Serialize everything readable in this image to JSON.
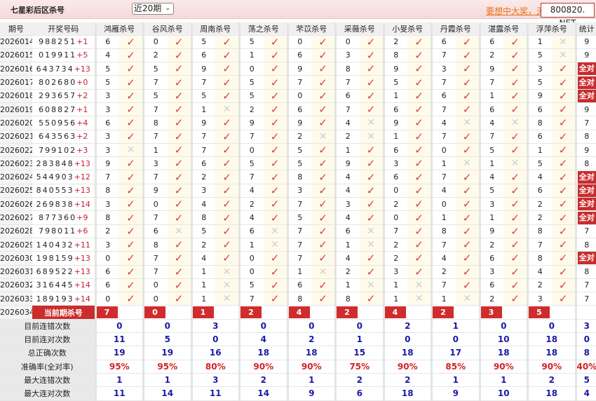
{
  "header": {
    "title": "七星彩后区杀号",
    "period_select": "近20期",
    "promo_link": "要想中大奖，天",
    "brand": "800820. NET"
  },
  "columns": {
    "period": "期号",
    "numbers": "开奖号码",
    "kills": [
      "鸿雁杀号",
      "谷风杀号",
      "周南杀号",
      "荡之杀号",
      "芣苡杀号",
      "采薇杀号",
      "小旻杀号",
      "丹霞杀号",
      "湛露杀号",
      "浮萍杀号"
    ],
    "stat": "统计"
  },
  "rows": [
    {
      "period": "2026014",
      "nums": "988251",
      "plus": "+1",
      "kills": [
        [
          6,
          1
        ],
        [
          0,
          1
        ],
        [
          5,
          1
        ],
        [
          5,
          1
        ],
        [
          0,
          1
        ],
        [
          0,
          1
        ],
        [
          2,
          1
        ],
        [
          6,
          1
        ],
        [
          6,
          1
        ],
        [
          1,
          0
        ]
      ],
      "stat": "9"
    },
    {
      "period": "2026015",
      "nums": "019911",
      "plus": "+5",
      "kills": [
        [
          4,
          1
        ],
        [
          2,
          1
        ],
        [
          6,
          1
        ],
        [
          1,
          1
        ],
        [
          6,
          1
        ],
        [
          3,
          1
        ],
        [
          8,
          1
        ],
        [
          7,
          1
        ],
        [
          2,
          1
        ],
        [
          5,
          0
        ]
      ],
      "stat": "9"
    },
    {
      "period": "2026016",
      "nums": "643734",
      "plus": "+13",
      "kills": [
        [
          5,
          1
        ],
        [
          5,
          1
        ],
        [
          9,
          1
        ],
        [
          0,
          1
        ],
        [
          9,
          1
        ],
        [
          8,
          1
        ],
        [
          9,
          1
        ],
        [
          3,
          1
        ],
        [
          9,
          1
        ],
        [
          3,
          1
        ]
      ],
      "stat": "全对"
    },
    {
      "period": "2026017",
      "nums": "802680",
      "plus": "+0",
      "kills": [
        [
          5,
          1
        ],
        [
          7,
          1
        ],
        [
          7,
          1
        ],
        [
          5,
          1
        ],
        [
          7,
          1
        ],
        [
          7,
          1
        ],
        [
          5,
          1
        ],
        [
          7,
          1
        ],
        [
          7,
          1
        ],
        [
          5,
          1
        ]
      ],
      "stat": "全对"
    },
    {
      "period": "2026018",
      "nums": "293657",
      "plus": "+2",
      "kills": [
        [
          3,
          1
        ],
        [
          5,
          1
        ],
        [
          5,
          1
        ],
        [
          5,
          1
        ],
        [
          0,
          1
        ],
        [
          6,
          1
        ],
        [
          1,
          1
        ],
        [
          6,
          1
        ],
        [
          1,
          1
        ],
        [
          9,
          1
        ]
      ],
      "stat": "全对"
    },
    {
      "period": "2026019",
      "nums": "608827",
      "plus": "+1",
      "kills": [
        [
          3,
          1
        ],
        [
          7,
          1
        ],
        [
          1,
          0
        ],
        [
          2,
          1
        ],
        [
          6,
          1
        ],
        [
          7,
          1
        ],
        [
          6,
          1
        ],
        [
          7,
          1
        ],
        [
          6,
          1
        ],
        [
          6,
          1
        ]
      ],
      "stat": "9"
    },
    {
      "period": "2026020",
      "nums": "550956",
      "plus": "+4",
      "kills": [
        [
          6,
          1
        ],
        [
          8,
          1
        ],
        [
          9,
          1
        ],
        [
          9,
          1
        ],
        [
          9,
          1
        ],
        [
          4,
          0
        ],
        [
          9,
          1
        ],
        [
          4,
          0
        ],
        [
          4,
          0
        ],
        [
          8,
          1
        ]
      ],
      "stat": "7"
    },
    {
      "period": "2026021",
      "nums": "643563",
      "plus": "+2",
      "kills": [
        [
          3,
          1
        ],
        [
          7,
          1
        ],
        [
          7,
          1
        ],
        [
          7,
          1
        ],
        [
          2,
          0
        ],
        [
          2,
          0
        ],
        [
          1,
          1
        ],
        [
          7,
          1
        ],
        [
          7,
          1
        ],
        [
          6,
          1
        ]
      ],
      "stat": "8"
    },
    {
      "period": "2026022",
      "nums": "799102",
      "plus": "+3",
      "kills": [
        [
          3,
          0
        ],
        [
          1,
          1
        ],
        [
          7,
          1
        ],
        [
          0,
          1
        ],
        [
          5,
          1
        ],
        [
          1,
          1
        ],
        [
          6,
          1
        ],
        [
          0,
          1
        ],
        [
          5,
          1
        ],
        [
          1,
          1
        ]
      ],
      "stat": "9"
    },
    {
      "period": "2026023",
      "nums": "283848",
      "plus": "+13",
      "kills": [
        [
          9,
          1
        ],
        [
          3,
          1
        ],
        [
          6,
          1
        ],
        [
          5,
          1
        ],
        [
          5,
          1
        ],
        [
          9,
          1
        ],
        [
          3,
          1
        ],
        [
          1,
          0
        ],
        [
          1,
          0
        ],
        [
          5,
          1
        ]
      ],
      "stat": "8"
    },
    {
      "period": "2026024",
      "nums": "544903",
      "plus": "+12",
      "kills": [
        [
          7,
          1
        ],
        [
          7,
          1
        ],
        [
          2,
          1
        ],
        [
          7,
          1
        ],
        [
          8,
          1
        ],
        [
          4,
          1
        ],
        [
          6,
          1
        ],
        [
          7,
          1
        ],
        [
          4,
          1
        ],
        [
          4,
          1
        ]
      ],
      "stat": "全对"
    },
    {
      "period": "2026025",
      "nums": "840553",
      "plus": "+13",
      "kills": [
        [
          8,
          1
        ],
        [
          9,
          1
        ],
        [
          3,
          1
        ],
        [
          4,
          1
        ],
        [
          3,
          1
        ],
        [
          4,
          1
        ],
        [
          0,
          1
        ],
        [
          4,
          1
        ],
        [
          5,
          1
        ],
        [
          6,
          1
        ]
      ],
      "stat": "全对"
    },
    {
      "period": "2026026",
      "nums": "269838",
      "plus": "+14",
      "kills": [
        [
          3,
          1
        ],
        [
          0,
          1
        ],
        [
          4,
          1
        ],
        [
          2,
          1
        ],
        [
          7,
          1
        ],
        [
          3,
          1
        ],
        [
          2,
          1
        ],
        [
          0,
          1
        ],
        [
          3,
          1
        ],
        [
          2,
          1
        ]
      ],
      "stat": "全对"
    },
    {
      "period": "2026027",
      "nums": "877360",
      "plus": "+9",
      "kills": [
        [
          8,
          1
        ],
        [
          7,
          1
        ],
        [
          8,
          1
        ],
        [
          4,
          1
        ],
        [
          5,
          1
        ],
        [
          4,
          1
        ],
        [
          0,
          1
        ],
        [
          1,
          1
        ],
        [
          1,
          1
        ],
        [
          2,
          1
        ]
      ],
      "stat": "全对"
    },
    {
      "period": "2026028",
      "nums": "798011",
      "plus": "+6",
      "kills": [
        [
          2,
          1
        ],
        [
          6,
          0
        ],
        [
          5,
          1
        ],
        [
          6,
          0
        ],
        [
          7,
          1
        ],
        [
          6,
          0
        ],
        [
          7,
          1
        ],
        [
          8,
          1
        ],
        [
          9,
          1
        ],
        [
          8,
          1
        ]
      ],
      "stat": "7"
    },
    {
      "period": "2026029",
      "nums": "140432",
      "plus": "+11",
      "kills": [
        [
          3,
          1
        ],
        [
          8,
          1
        ],
        [
          2,
          1
        ],
        [
          1,
          0
        ],
        [
          7,
          1
        ],
        [
          1,
          0
        ],
        [
          2,
          1
        ],
        [
          7,
          1
        ],
        [
          2,
          1
        ],
        [
          7,
          1
        ]
      ],
      "stat": "8"
    },
    {
      "period": "2026030",
      "nums": "198159",
      "plus": "+13",
      "kills": [
        [
          0,
          1
        ],
        [
          7,
          1
        ],
        [
          4,
          1
        ],
        [
          0,
          1
        ],
        [
          7,
          1
        ],
        [
          4,
          1
        ],
        [
          2,
          1
        ],
        [
          4,
          1
        ],
        [
          6,
          1
        ],
        [
          8,
          1
        ]
      ],
      "stat": "全对"
    },
    {
      "period": "2026031",
      "nums": "689522",
      "plus": "+13",
      "kills": [
        [
          6,
          1
        ],
        [
          7,
          1
        ],
        [
          1,
          0
        ],
        [
          0,
          1
        ],
        [
          1,
          0
        ],
        [
          2,
          1
        ],
        [
          3,
          1
        ],
        [
          2,
          1
        ],
        [
          3,
          1
        ],
        [
          4,
          1
        ]
      ],
      "stat": "8"
    },
    {
      "period": "2026032",
      "nums": "316445",
      "plus": "+14",
      "kills": [
        [
          6,
          1
        ],
        [
          0,
          1
        ],
        [
          1,
          0
        ],
        [
          5,
          1
        ],
        [
          6,
          1
        ],
        [
          1,
          0
        ],
        [
          1,
          0
        ],
        [
          7,
          1
        ],
        [
          6,
          1
        ],
        [
          2,
          1
        ]
      ],
      "stat": "7"
    },
    {
      "period": "2026033",
      "nums": "189193",
      "plus": "+14",
      "kills": [
        [
          0,
          1
        ],
        [
          0,
          1
        ],
        [
          1,
          0
        ],
        [
          7,
          1
        ],
        [
          8,
          1
        ],
        [
          8,
          1
        ],
        [
          1,
          0
        ],
        [
          1,
          0
        ],
        [
          2,
          1
        ],
        [
          3,
          1
        ]
      ],
      "stat": "7"
    }
  ],
  "current": {
    "period": "2026034",
    "label": "当前期杀号",
    "kills": [
      "7",
      "0",
      "1",
      "2",
      "4",
      "2",
      "4",
      "2",
      "3",
      "5"
    ]
  },
  "stats": [
    {
      "label": "目前连错次数",
      "values": [
        "0",
        "0",
        "3",
        "0",
        "0",
        "0",
        "2",
        "1",
        "0",
        "0"
      ],
      "stat": "3"
    },
    {
      "label": "目前连对次数",
      "values": [
        "11",
        "5",
        "0",
        "4",
        "2",
        "1",
        "0",
        "0",
        "10",
        "18"
      ],
      "stat": "0"
    },
    {
      "label": "总正确次数",
      "values": [
        "19",
        "19",
        "16",
        "18",
        "18",
        "15",
        "18",
        "17",
        "18",
        "18"
      ],
      "stat": "8"
    },
    {
      "label": "准确率(全对率)",
      "values": [
        "95%",
        "95%",
        "80%",
        "90%",
        "90%",
        "75%",
        "90%",
        "85%",
        "90%",
        "90%"
      ],
      "stat": "40%",
      "pct": true
    },
    {
      "label": "最大连错次数",
      "values": [
        "1",
        "1",
        "3",
        "2",
        "1",
        "2",
        "2",
        "1",
        "1",
        "2"
      ],
      "stat": "5"
    },
    {
      "label": "最大连对次数",
      "values": [
        "11",
        "14",
        "11",
        "14",
        "9",
        "6",
        "18",
        "9",
        "10",
        "18"
      ],
      "stat": "4"
    }
  ],
  "marks": {
    "ok": "✓",
    "no": "✕"
  },
  "colors": {
    "accent": "#c92d2d",
    "check": "#d63a4f",
    "stat_value": "#1a1aa8"
  }
}
